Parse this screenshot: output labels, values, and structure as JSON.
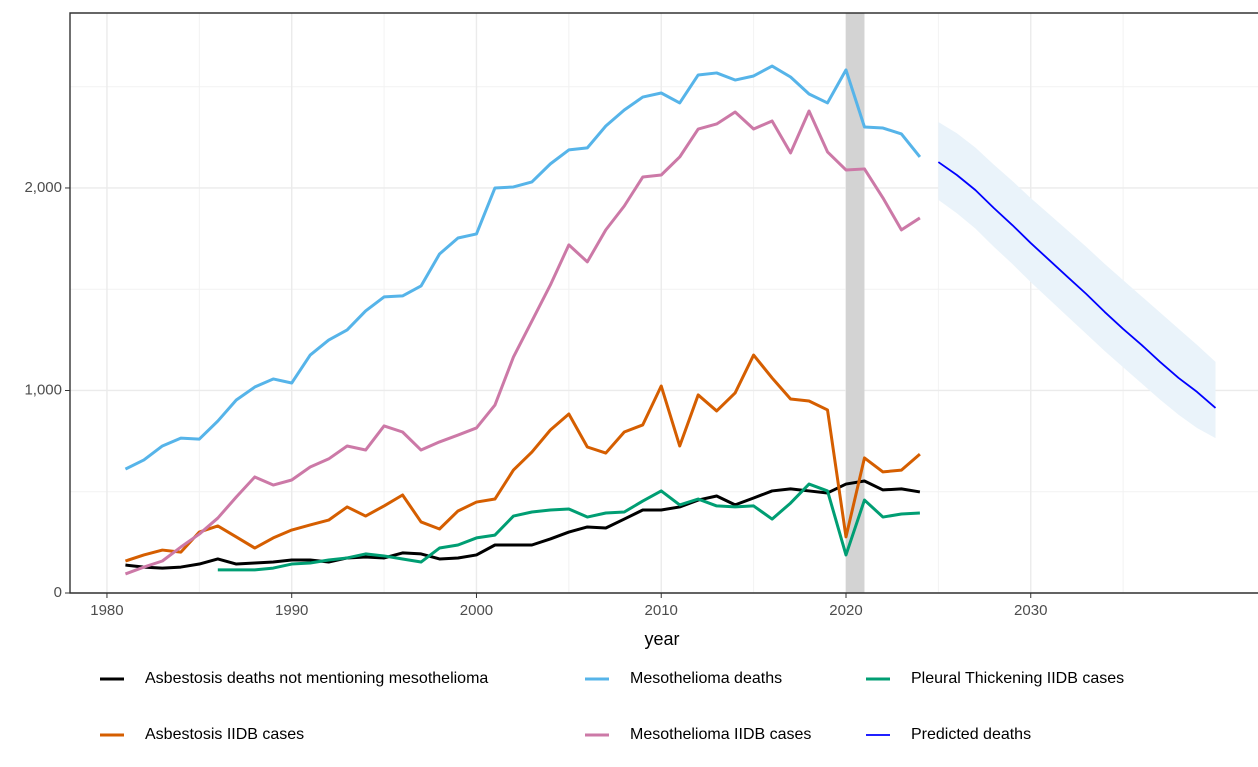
{
  "chart_data": {
    "type": "line",
    "x_label": "year",
    "xlim": [
      1978,
      2042.3
    ],
    "ylim": [
      0,
      2864
    ],
    "xticks": [
      1980,
      1990,
      2000,
      2010,
      2020,
      2030
    ],
    "yticks": [
      0,
      {
        "value": 1000,
        "label": "1,000"
      },
      {
        "value": 2000,
        "label": "2,000"
      }
    ],
    "x_minor_grid": [
      1985,
      1995,
      2005,
      2015,
      2025,
      2035
    ],
    "y_minor_grid": [
      500,
      1500,
      2500
    ],
    "grid": true,
    "highlight": [
      2020,
      2021
    ],
    "highlight_color": "#d3d3d3",
    "legend": "bottom",
    "x": [
      1981,
      1982,
      1983,
      1984,
      1985,
      1986,
      1987,
      1988,
      1989,
      1990,
      1991,
      1992,
      1993,
      1994,
      1995,
      1996,
      1997,
      1998,
      1999,
      2000,
      2001,
      2002,
      2003,
      2004,
      2005,
      2006,
      2007,
      2008,
      2009,
      2010,
      2011,
      2012,
      2013,
      2014,
      2015,
      2016,
      2017,
      2018,
      2019,
      2020,
      2021,
      2022,
      2023,
      2024,
      2025,
      2026,
      2027,
      2028,
      2029,
      2030,
      2031,
      2032,
      2033,
      2034,
      2035,
      2036,
      2037,
      2038,
      2039,
      2040
    ],
    "series": [
      {
        "name": "Asbestosis deaths not mentioning mesothelioma",
        "color": "#000000",
        "values": [
          138,
          128,
          123,
          128,
          143,
          168,
          143,
          148,
          153,
          163,
          163,
          153,
          173,
          178,
          173,
          198,
          193,
          168,
          173,
          188,
          237,
          237,
          237,
          267,
          301,
          326,
          321,
          365,
          410,
          410,
          425,
          459,
          479,
          435,
          469,
          504,
          514,
          504,
          494,
          538,
          553,
          509,
          514,
          499,
          null,
          null,
          null,
          null,
          null,
          null,
          null,
          null,
          null,
          null,
          null,
          null,
          null,
          null,
          null,
          null
        ]
      },
      {
        "name": "Mesothelioma deaths",
        "color": "#56B4E9",
        "values": [
          612,
          657,
          726,
          765,
          760,
          849,
          953,
          1017,
          1057,
          1037,
          1175,
          1249,
          1299,
          1393,
          1462,
          1467,
          1516,
          1674,
          1753,
          1773,
          2000,
          2005,
          2030,
          2119,
          2188,
          2198,
          2306,
          2385,
          2449,
          2469,
          2420,
          2558,
          2568,
          2533,
          2553,
          2602,
          2548,
          2464,
          2420,
          2583,
          2301,
          2296,
          2267,
          2153,
          null,
          null,
          null,
          null,
          null,
          null,
          null,
          null,
          null,
          null,
          null,
          null,
          null,
          null,
          null,
          null
        ]
      },
      {
        "name": "Pleural Thickening IIDB cases",
        "color": "#009E73",
        "values": [
          null,
          null,
          null,
          null,
          null,
          114,
          114,
          114,
          123,
          143,
          148,
          163,
          173,
          193,
          183,
          168,
          153,
          222,
          237,
          272,
          286,
          380,
          400,
          410,
          415,
          375,
          395,
          400,
          454,
          504,
          435,
          464,
          430,
          425,
          430,
          365,
          444,
          538,
          504,
          188,
          459,
          375,
          390,
          395,
          null,
          null,
          null,
          null,
          null,
          null,
          null,
          null,
          null,
          null,
          null,
          null,
          null,
          null,
          null,
          null
        ]
      },
      {
        "name": "Asbestosis IIDB cases",
        "color": "#D55E00",
        "values": [
          158,
          188,
          212,
          202,
          301,
          331,
          277,
          222,
          272,
          311,
          336,
          360,
          425,
          380,
          430,
          484,
          351,
          316,
          405,
          449,
          464,
          607,
          696,
          805,
          884,
          721,
          691,
          795,
          830,
          1022,
          726,
          978,
          899,
          988,
          1175,
          1062,
          958,
          948,
          904,
          277,
          667,
          598,
          607,
          686,
          null,
          null,
          null,
          null,
          null,
          null,
          null,
          null,
          null,
          null,
          null,
          null,
          null,
          null,
          null,
          null
        ]
      },
      {
        "name": "Mesothelioma IIDB cases",
        "color": "#CC79A7",
        "values": [
          94,
          128,
          158,
          227,
          291,
          370,
          474,
          573,
          533,
          558,
          622,
          662,
          726,
          706,
          825,
          795,
          706,
          746,
          780,
          815,
          928,
          1165,
          1343,
          1521,
          1719,
          1635,
          1793,
          1911,
          2054,
          2064,
          2153,
          2291,
          2316,
          2375,
          2291,
          2331,
          2173,
          2380,
          2178,
          2089,
          2094,
          1951,
          1793,
          1852,
          null,
          null,
          null,
          null,
          null,
          null,
          null,
          null,
          null,
          null,
          null,
          null,
          null,
          null,
          null,
          null
        ]
      },
      {
        "name": "Predicted deaths",
        "color": "#0000FF",
        "band_color": "#eaf3fa",
        "values": [
          null,
          null,
          null,
          null,
          null,
          null,
          null,
          null,
          null,
          null,
          null,
          null,
          null,
          null,
          null,
          null,
          null,
          null,
          null,
          null,
          null,
          null,
          null,
          null,
          null,
          null,
          null,
          null,
          null,
          null,
          null,
          null,
          null,
          null,
          null,
          null,
          null,
          null,
          null,
          null,
          null,
          null,
          null,
          null,
          2128,
          2064,
          1990,
          1901,
          1817,
          1728,
          1644,
          1560,
          1477,
          1388,
          1304,
          1225,
          1141,
          1062,
          993,
          914
        ],
        "upper": [
          null,
          null,
          null,
          null,
          null,
          null,
          null,
          null,
          null,
          null,
          null,
          null,
          null,
          null,
          null,
          null,
          null,
          null,
          null,
          null,
          null,
          null,
          null,
          null,
          null,
          null,
          null,
          null,
          null,
          null,
          null,
          null,
          null,
          null,
          null,
          null,
          null,
          null,
          null,
          null,
          null,
          null,
          null,
          null,
          2326,
          2270,
          2200,
          2115,
          2035,
          1950,
          1870,
          1790,
          1710,
          1625,
          1545,
          1465,
          1385,
          1305,
          1225,
          1141
        ],
        "lower": [
          null,
          null,
          null,
          null,
          null,
          null,
          null,
          null,
          null,
          null,
          null,
          null,
          null,
          null,
          null,
          null,
          null,
          null,
          null,
          null,
          null,
          null,
          null,
          null,
          null,
          null,
          null,
          null,
          null,
          null,
          null,
          null,
          null,
          null,
          null,
          null,
          null,
          null,
          null,
          null,
          null,
          null,
          null,
          null,
          1941,
          1875,
          1800,
          1710,
          1625,
          1535,
          1450,
          1365,
          1280,
          1195,
          1115,
          1035,
          955,
          880,
          815,
          765
        ]
      }
    ]
  }
}
